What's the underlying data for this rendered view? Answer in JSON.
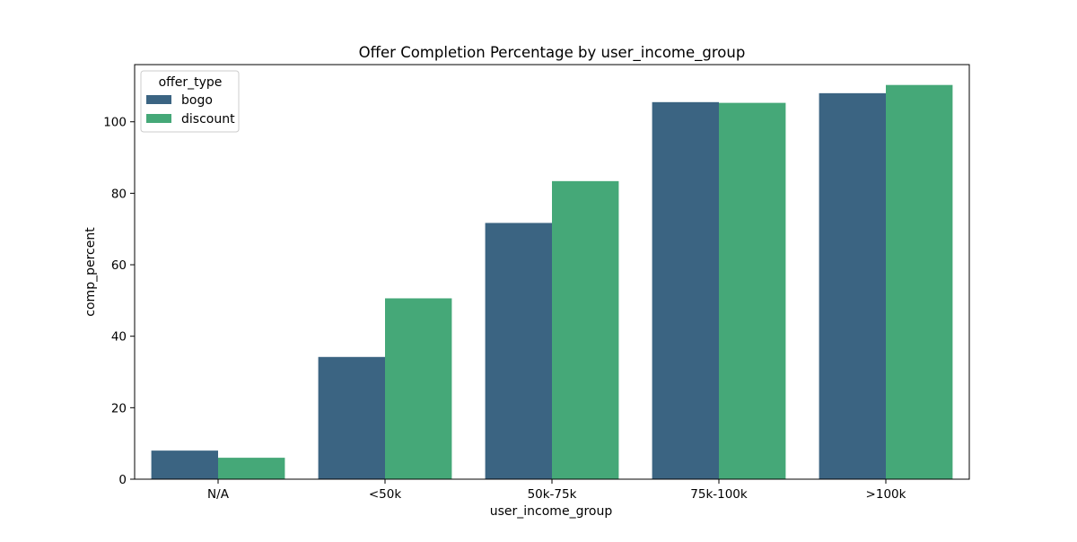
{
  "chart_data": {
    "type": "bar",
    "title": "Offer Completion Percentage by user_income_group",
    "xlabel": "user_income_group",
    "ylabel": "comp_percent",
    "categories": [
      "N/A",
      "<50k",
      "50k-75k",
      "75k-100k",
      ">100k"
    ],
    "series": [
      {
        "name": "bogo",
        "color": "#3b6482",
        "values": [
          8.0,
          34.2,
          71.7,
          105.5,
          108.0
        ]
      },
      {
        "name": "discount",
        "color": "#45a878",
        "values": [
          6.0,
          50.6,
          83.4,
          105.3,
          110.3
        ]
      }
    ],
    "ylim": [
      0,
      116
    ],
    "yticks": [
      0,
      20,
      40,
      60,
      80,
      100
    ],
    "grid": false,
    "legend": {
      "title": "offer_type",
      "position": "top-left"
    }
  }
}
